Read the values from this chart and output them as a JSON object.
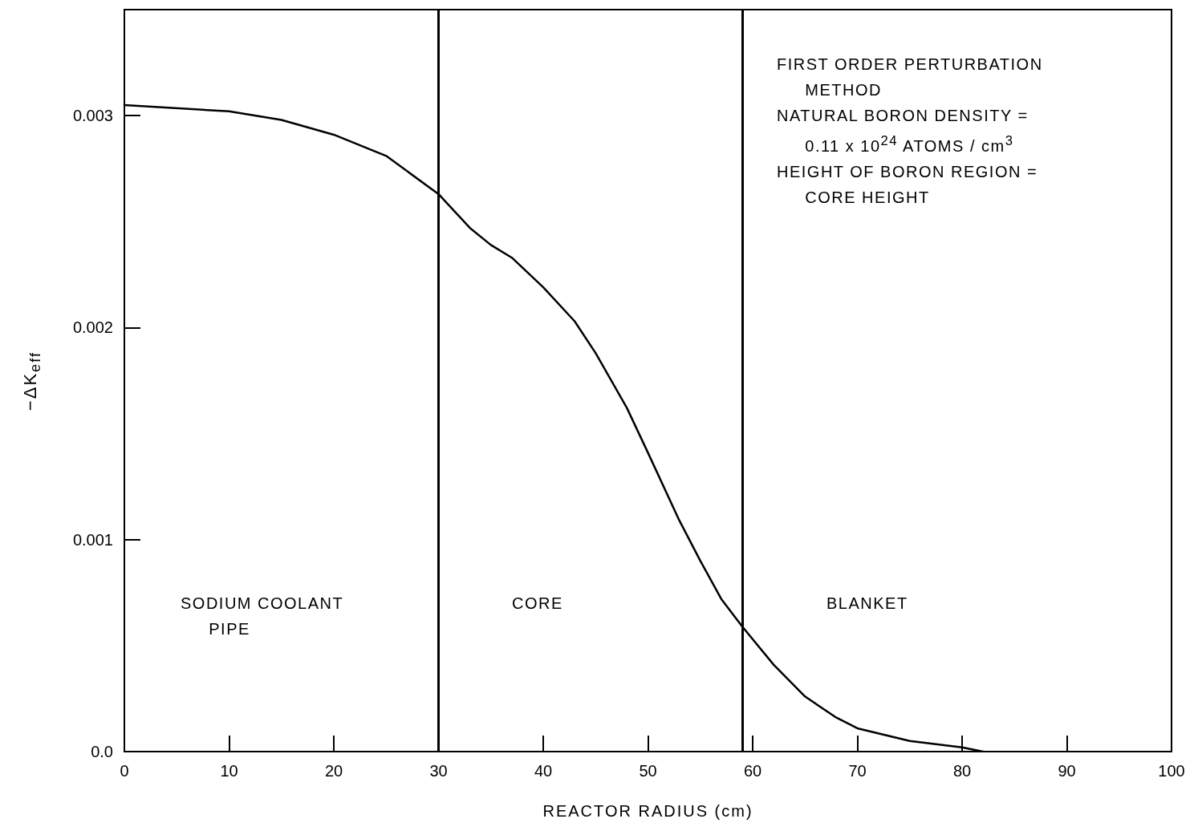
{
  "chart_data": {
    "type": "line",
    "xlabel": "REACTOR RADIUS (cm)",
    "ylabel": "−ΔK$_{eff}$",
    "x": [
      0,
      10,
      15,
      20,
      25,
      30,
      33,
      35,
      37,
      40,
      43,
      45,
      48,
      50,
      53,
      55,
      57,
      59,
      62,
      65,
      68,
      70,
      75,
      80,
      82
    ],
    "series": [
      {
        "color": "#000000",
        "values": [
          0.00305,
          0.00302,
          0.00298,
          0.00291,
          0.00281,
          0.00263,
          0.00247,
          0.00239,
          0.00233,
          0.00219,
          0.00203,
          0.00188,
          0.00162,
          0.00141,
          0.00109,
          0.0009,
          0.00072,
          0.00059,
          0.00041,
          0.00026,
          0.00016,
          0.00011,
          5e-05,
          2e-05,
          0.0
        ]
      }
    ],
    "xlim": [
      0,
      100
    ],
    "xticks": [
      0,
      10,
      20,
      30,
      40,
      50,
      60,
      70,
      80,
      90,
      100
    ],
    "ylim": [
      0,
      0.0035
    ],
    "yticks": [
      {
        "value": 0,
        "label": "0.0"
      },
      0.001,
      0.002,
      0.003
    ],
    "grid": false,
    "marker": "none",
    "line_style": "solid",
    "ref_lines": [
      {
        "axis": "x",
        "value": 30,
        "color": "#000000"
      },
      {
        "axis": "x",
        "value": 59,
        "color": "#000000"
      }
    ],
    "annotations": [
      "SODIUM COOLANT\n     PIPE",
      "CORE",
      "BLANKET",
      "FIRST ORDER PERTURBATION\n     METHOD\nNATURAL BORON DENSITY =\n     0.11 x 10$^{24}$ ATOMS / cm$^{3}$\nHEIGHT OF BORON REGION =\n     CORE HEIGHT"
    ]
  }
}
